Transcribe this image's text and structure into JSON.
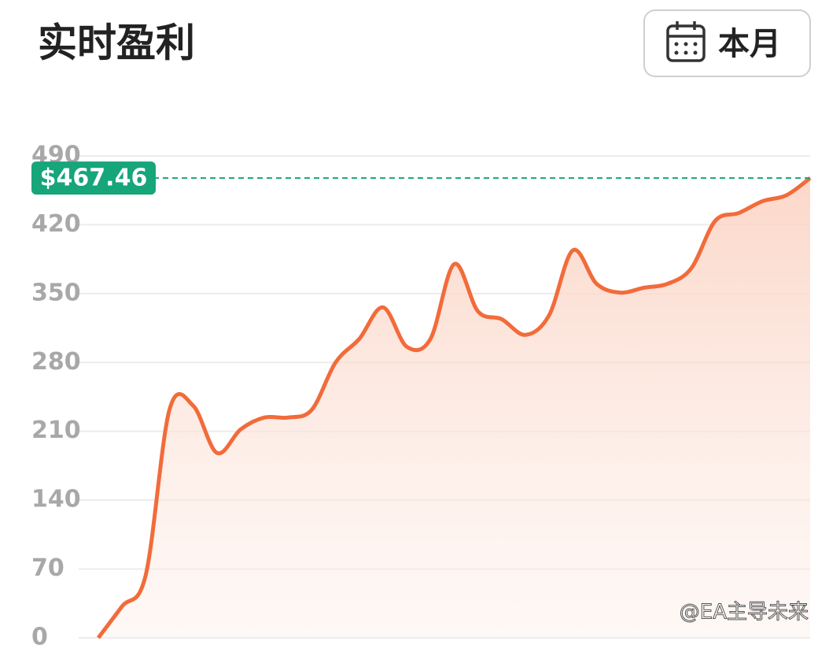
{
  "chart_data": {
    "type": "area",
    "title": "实时盈利",
    "period_button": "本月",
    "categories": [
      null,
      null,
      null,
      null,
      null,
      null,
      null,
      null,
      null,
      null,
      null,
      null,
      null,
      null,
      null,
      null,
      null,
      null,
      null,
      null,
      null,
      null,
      null,
      null,
      null,
      null,
      null,
      null,
      null,
      null,
      null
    ],
    "series": [
      {
        "color": "#f26b3a",
        "values": [
          0,
          32,
          64,
          232,
          236,
          188,
          212,
          224,
          224,
          232,
          280,
          304,
          336,
          296,
          304,
          380,
          332,
          324,
          308,
          328,
          394,
          360,
          351,
          356,
          360,
          376,
          424,
          432,
          444,
          450,
          467.46
        ]
      }
    ],
    "ylim": [
      0,
      490
    ],
    "yticks": [
      0,
      70,
      140,
      210,
      280,
      350,
      420,
      490
    ],
    "grid": true,
    "marker": {
      "value": 467.46,
      "label": "$467.46",
      "color": "#17a57a"
    },
    "watermark": "@EA主导未来"
  }
}
